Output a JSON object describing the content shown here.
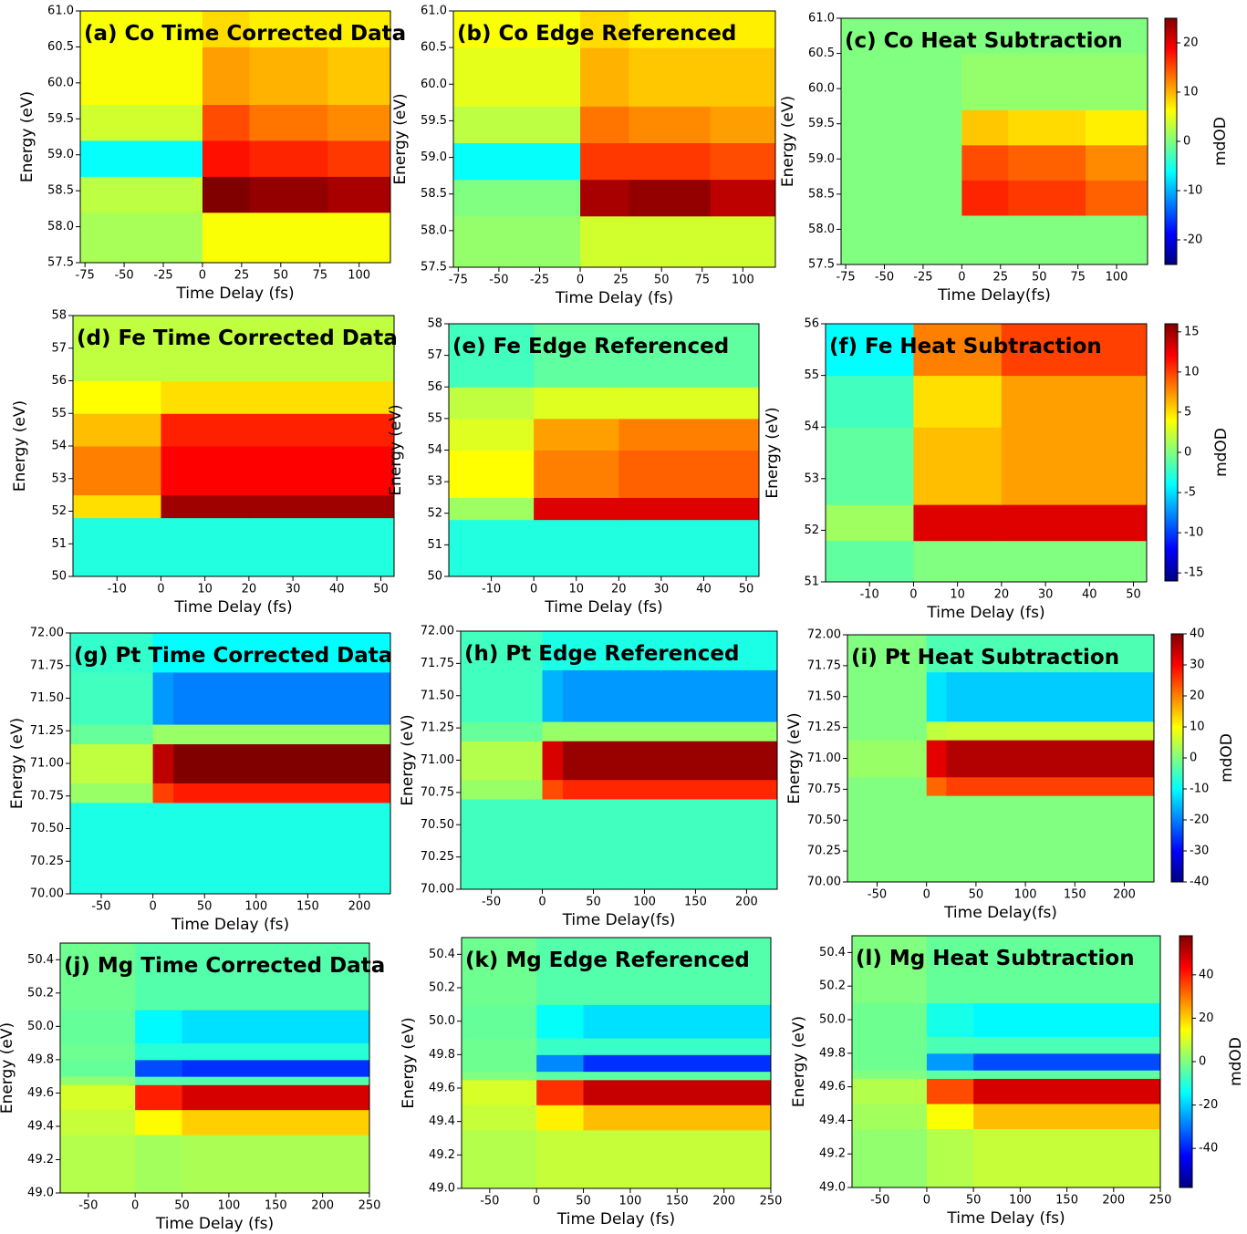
{
  "chart_data": [
    {
      "type": "heatmap",
      "title": "(a) Co Time Corrected Data",
      "xlabel": "Time Delay (fs)",
      "ylabel": "Energy (eV)",
      "xlim": [
        -78,
        120
      ],
      "xticks": [
        -75,
        -50,
        -25,
        0,
        25,
        50,
        75,
        100
      ],
      "ylim": [
        57.5,
        61
      ],
      "yticks": [
        57.5,
        {
          "value": 58,
          "label": "58.0"
        },
        58.5,
        {
          "value": 59,
          "label": "59.0"
        },
        59.5,
        {
          "value": 60,
          "label": "60.0"
        },
        60.5,
        {
          "value": 61,
          "label": "61.0"
        }
      ],
      "x": [
        -78,
        0,
        30,
        80,
        120
      ],
      "y": [
        57.5,
        58.2,
        58.7,
        59.2,
        59.7,
        60.5,
        61
      ],
      "z": [
        [
          2,
          6,
          6,
          6
        ],
        [
          3,
          25,
          24,
          23
        ],
        [
          -6,
          18,
          17,
          16
        ],
        [
          4,
          15,
          13,
          12
        ],
        [
          6,
          11,
          10,
          9
        ],
        [
          6,
          8,
          7,
          7
        ]
      ]
    },
    {
      "type": "heatmap",
      "title": "(b) Co Edge Referenced",
      "xlabel": "Time Delay (fs)",
      "ylabel": "Energy (eV)",
      "xlim": [
        -78,
        120
      ],
      "xticks": [
        -75,
        -50,
        -25,
        0,
        25,
        50,
        75,
        100
      ],
      "ylim": [
        57.5,
        61
      ],
      "yticks": [
        57.5,
        {
          "value": 58,
          "label": "58.0"
        },
        58.5,
        {
          "value": 59,
          "label": "59.0"
        },
        59.5,
        {
          "value": 60,
          "label": "60.0"
        },
        60.5,
        {
          "value": 61,
          "label": "61.0"
        }
      ],
      "x": [
        -78,
        0,
        30,
        80,
        120
      ],
      "y": [
        57.5,
        58.2,
        58.7,
        59.2,
        59.7,
        60.5,
        61
      ],
      "z": [
        [
          1,
          4,
          4,
          4
        ],
        [
          0,
          23,
          24,
          22
        ],
        [
          -6,
          16,
          16,
          15
        ],
        [
          3,
          13,
          12,
          11
        ],
        [
          5,
          10,
          9,
          9
        ],
        [
          6,
          8,
          7,
          7
        ]
      ]
    },
    {
      "type": "heatmap",
      "title": "(c) Co Heat Subtraction",
      "xlabel": "Time Delay(fs)",
      "ylabel": "Energy (eV)",
      "xlim": [
        -78,
        120
      ],
      "xticks": [
        -75,
        -50,
        -25,
        0,
        25,
        50,
        75,
        100
      ],
      "ylim": [
        57.5,
        61
      ],
      "yticks": [
        57.5,
        {
          "value": 58,
          "label": "58.0"
        },
        58.5,
        {
          "value": 59,
          "label": "59.0"
        },
        59.5,
        {
          "value": 60,
          "label": "60.0"
        },
        60.5,
        {
          "value": 61,
          "label": "61.0"
        }
      ],
      "x": [
        -78,
        0,
        30,
        80,
        120
      ],
      "y": [
        57.5,
        58.2,
        58.7,
        59.2,
        59.7,
        60.5,
        61
      ],
      "z": [
        [
          0,
          0,
          0,
          0
        ],
        [
          0,
          17,
          16,
          14
        ],
        [
          0,
          15,
          14,
          12
        ],
        [
          0,
          9,
          8,
          7
        ],
        [
          0,
          1,
          1,
          1
        ],
        [
          0,
          0,
          0,
          0
        ]
      ],
      "colorbar": {
        "label": "mdOD",
        "zlim": [
          -25,
          25
        ],
        "zticks": [
          -20,
          -10,
          0,
          10,
          20
        ]
      }
    },
    {
      "type": "heatmap",
      "title": "(d) Fe Time Corrected Data",
      "xlabel": "Time Delay (fs)",
      "ylabel": "Energy (eV)",
      "xlim": [
        -20,
        53
      ],
      "xticks": [
        -10,
        0,
        10,
        20,
        30,
        40,
        50
      ],
      "ylim": [
        50,
        58
      ],
      "yticks": [
        50,
        51,
        52,
        53,
        54,
        55,
        56,
        57,
        58
      ],
      "x": [
        -20,
        0,
        20,
        53
      ],
      "y": [
        50,
        51.8,
        52.5,
        54,
        55,
        56,
        58
      ],
      "z": [
        [
          -3,
          -3,
          -3
        ],
        [
          5,
          15,
          15
        ],
        [
          8,
          12,
          12
        ],
        [
          6,
          11,
          11
        ],
        [
          4,
          5,
          5
        ],
        [
          2,
          2,
          2
        ]
      ]
    },
    {
      "type": "heatmap",
      "title": "(e) Fe Edge Referenced",
      "xlabel": "Time Delay (fs)",
      "ylabel": "Energy (eV)",
      "xlim": [
        -20,
        53
      ],
      "xticks": [
        -10,
        0,
        10,
        20,
        30,
        40,
        50
      ],
      "ylim": [
        50,
        58
      ],
      "yticks": [
        50,
        51,
        52,
        53,
        54,
        55,
        56,
        57,
        58
      ],
      "x": [
        -20,
        0,
        20,
        53
      ],
      "y": [
        50,
        51.8,
        52.5,
        54,
        55,
        56,
        58
      ],
      "z": [
        [
          -3,
          -3,
          -3
        ],
        [
          1,
          13,
          13
        ],
        [
          4,
          8,
          9
        ],
        [
          3,
          7,
          8
        ],
        [
          2,
          3,
          3
        ],
        [
          -2,
          -1,
          -1
        ]
      ]
    },
    {
      "type": "heatmap",
      "title": "(f) Fe Heat Subtraction",
      "xlabel": "Time Delay (fs)",
      "ylabel": "Energy (eV)",
      "xlim": [
        -20,
        53
      ],
      "xticks": [
        -10,
        0,
        10,
        20,
        30,
        40,
        50
      ],
      "ylim": [
        51,
        56
      ],
      "yticks": [
        51,
        52,
        53,
        54,
        55,
        56
      ],
      "x": [
        -20,
        0,
        20,
        53
      ],
      "y": [
        51,
        51.8,
        52.5,
        54,
        55,
        56
      ],
      "z": [
        [
          -1,
          0,
          0
        ],
        [
          1,
          13,
          13
        ],
        [
          -1,
          6,
          7
        ],
        [
          -2,
          5,
          7
        ],
        [
          -4,
          8,
          10
        ]
      ],
      "colorbar": {
        "label": "mdOD",
        "zlim": [
          -16,
          16
        ],
        "zticks": [
          -15,
          -10,
          -5,
          0,
          5,
          10,
          15
        ]
      }
    },
    {
      "type": "heatmap",
      "title": "(g) Pt Time Corrected Data",
      "xlabel": "Time Delay (fs)",
      "ylabel": "Energy (eV)",
      "xlim": [
        -80,
        230
      ],
      "xticks": [
        -50,
        0,
        50,
        100,
        150,
        200
      ],
      "ylim": [
        70,
        72
      ],
      "yticks": [
        {
          "value": 70,
          "label": "70.00"
        },
        70.25,
        {
          "value": 70.5,
          "label": "70.50"
        },
        70.75,
        {
          "value": 71,
          "label": "71.00"
        },
        71.25,
        {
          "value": 71.5,
          "label": "71.50"
        },
        71.75,
        {
          "value": 72,
          "label": "72.00"
        }
      ],
      "x": [
        -80,
        0,
        20,
        230
      ],
      "y": [
        70,
        70.7,
        70.85,
        71.15,
        71.3,
        71.7,
        72
      ],
      "z": [
        [
          -8,
          -8,
          -8
        ],
        [
          2,
          25,
          28
        ],
        [
          5,
          35,
          40
        ],
        [
          -2,
          2,
          2
        ],
        [
          -5,
          -18,
          -20
        ],
        [
          -6,
          -10,
          -10
        ]
      ]
    },
    {
      "type": "heatmap",
      "title": "(h) Pt Edge Referenced",
      "xlabel": "Time Delay(fs)",
      "ylabel": "Energy (eV)",
      "xlim": [
        -80,
        230
      ],
      "xticks": [
        -50,
        0,
        50,
        100,
        150,
        200
      ],
      "ylim": [
        70,
        72
      ],
      "yticks": [
        {
          "value": 70,
          "label": "70.00"
        },
        70.25,
        {
          "value": 70.5,
          "label": "70.50"
        },
        70.75,
        {
          "value": 71,
          "label": "71.00"
        },
        71.25,
        {
          "value": 71.5,
          "label": "71.50"
        },
        71.75,
        {
          "value": 72,
          "label": "72.00"
        }
      ],
      "x": [
        -80,
        0,
        20,
        230
      ],
      "y": [
        70,
        70.7,
        70.85,
        71.15,
        71.3,
        71.7,
        72
      ],
      "z": [
        [
          -5,
          -5,
          -5
        ],
        [
          2,
          24,
          27
        ],
        [
          4,
          33,
          38
        ],
        [
          -2,
          2,
          2
        ],
        [
          -5,
          -16,
          -18
        ],
        [
          -5,
          -8,
          -8
        ]
      ]
    },
    {
      "type": "heatmap",
      "title": "(i) Pt Heat Subtraction",
      "xlabel": "Time Delay(fs)",
      "ylabel": "Energy (eV)",
      "xlim": [
        -80,
        230
      ],
      "xticks": [
        -50,
        0,
        50,
        100,
        150,
        200
      ],
      "ylim": [
        70,
        72
      ],
      "yticks": [
        {
          "value": 70,
          "label": "70.00"
        },
        70.25,
        {
          "value": 70.5,
          "label": "70.50"
        },
        70.75,
        {
          "value": 71,
          "label": "71.00"
        },
        71.25,
        {
          "value": 71.5,
          "label": "71.50"
        },
        71.75,
        {
          "value": 72,
          "label": "72.00"
        }
      ],
      "x": [
        -80,
        0,
        20,
        230
      ],
      "y": [
        70,
        70.7,
        70.85,
        71.15,
        71.3,
        71.7,
        72
      ],
      "z": [
        [
          0,
          0,
          0
        ],
        [
          0,
          22,
          25
        ],
        [
          2,
          32,
          36
        ],
        [
          0,
          5,
          6
        ],
        [
          0,
          -12,
          -14
        ],
        [
          0,
          -4,
          -4
        ]
      ],
      "colorbar": {
        "label": "mdOD",
        "zlim": [
          -40,
          40
        ],
        "zticks": [
          -40,
          -30,
          -20,
          -10,
          0,
          10,
          20,
          30,
          40
        ]
      }
    },
    {
      "type": "heatmap",
      "title": "(j) Mg Time Corrected Data",
      "xlabel": "Time Delay (fs)",
      "ylabel": "Energy (eV)",
      "xlim": [
        -80,
        250
      ],
      "xticks": [
        -50,
        0,
        50,
        100,
        150,
        200,
        250
      ],
      "ylim": [
        49,
        50.5
      ],
      "yticks": [
        {
          "value": 49,
          "label": "49.0"
        },
        49.2,
        49.4,
        49.6,
        49.8,
        {
          "value": 50,
          "label": "50.0"
        },
        50.2,
        50.4
      ],
      "x": [
        -80,
        0,
        50,
        250
      ],
      "y": [
        49,
        49.35,
        49.5,
        49.65,
        49.7,
        49.8,
        49.9,
        50.1,
        50.5
      ],
      "z": [
        [
          6,
          4,
          5
        ],
        [
          8,
          15,
          20
        ],
        [
          10,
          40,
          48
        ],
        [
          2,
          -5,
          -5
        ],
        [
          -3,
          -35,
          -38
        ],
        [
          -2,
          -10,
          -10
        ],
        [
          -3,
          -15,
          -18
        ],
        [
          -2,
          -5,
          -5
        ]
      ]
    },
    {
      "type": "heatmap",
      "title": "(k) Mg Edge Referenced",
      "xlabel": "Time Delay (fs)",
      "ylabel": "Energy (eV)",
      "xlim": [
        -80,
        250
      ],
      "xticks": [
        -50,
        0,
        50,
        100,
        150,
        200,
        250
      ],
      "ylim": [
        49,
        50.5
      ],
      "yticks": [
        {
          "value": 49,
          "label": "49.0"
        },
        49.2,
        49.4,
        49.6,
        49.8,
        {
          "value": 50,
          "label": "50.0"
        },
        50.2,
        50.4
      ],
      "x": [
        -80,
        0,
        50,
        250
      ],
      "y": [
        49,
        49.35,
        49.5,
        49.65,
        49.7,
        49.8,
        49.9,
        50.1,
        50.5
      ],
      "z": [
        [
          6,
          8,
          8
        ],
        [
          8,
          16,
          22
        ],
        [
          10,
          38,
          50
        ],
        [
          0,
          -4,
          -4
        ],
        [
          -2,
          -28,
          -38
        ],
        [
          -2,
          -8,
          -8
        ],
        [
          -3,
          -14,
          -18
        ],
        [
          -2,
          -5,
          -5
        ]
      ]
    },
    {
      "type": "heatmap",
      "title": "(l) Mg Heat Subtraction",
      "xlabel": "Time Delay (fs)",
      "ylabel": "Energy (eV)",
      "xlim": [
        -80,
        250
      ],
      "xticks": [
        -50,
        0,
        50,
        100,
        150,
        200,
        250
      ],
      "ylim": [
        49,
        50.5
      ],
      "yticks": [
        {
          "value": 49,
          "label": "49.0"
        },
        49.2,
        49.4,
        49.6,
        49.8,
        {
          "value": 50,
          "label": "50.0"
        },
        50.2,
        50.4
      ],
      "x": [
        -80,
        0,
        50,
        250
      ],
      "y": [
        49,
        49.35,
        49.5,
        49.65,
        49.7,
        49.8,
        49.9,
        50.1,
        50.5
      ],
      "z": [
        [
          2,
          6,
          8
        ],
        [
          4,
          14,
          22
        ],
        [
          6,
          35,
          48
        ],
        [
          0,
          -4,
          -4
        ],
        [
          -2,
          -26,
          -35
        ],
        [
          -2,
          -6,
          -6
        ],
        [
          -2,
          -12,
          -15
        ],
        [
          0,
          -3,
          -3
        ]
      ],
      "colorbar": {
        "label": "mdOD",
        "zlim": [
          -58,
          58
        ],
        "zticks": [
          -40,
          -20,
          0,
          20,
          40
        ]
      }
    }
  ]
}
